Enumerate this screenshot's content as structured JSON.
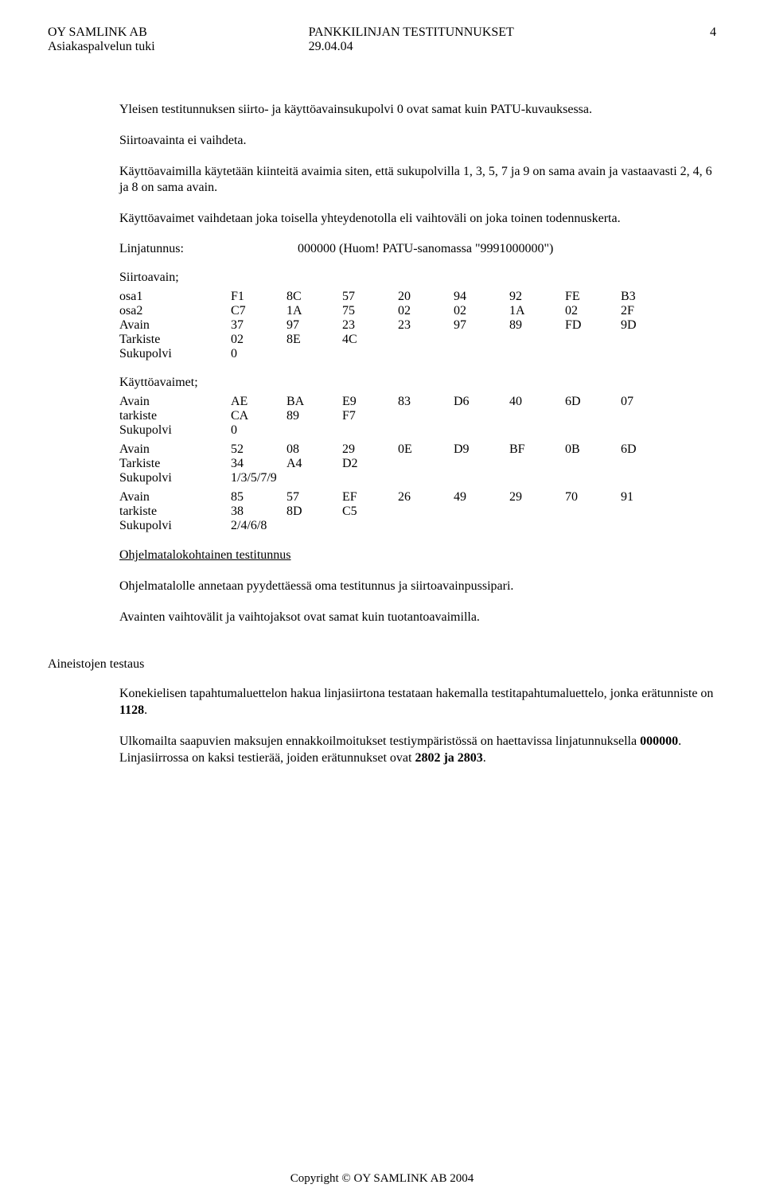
{
  "header": {
    "company": "OY  SAMLINK AB",
    "subline": "Asiakaspalvelun tuki",
    "title": "PANKKILINJAN TESTITUNNUKSET",
    "date": "29.04.04",
    "page_number": "4"
  },
  "paragraphs": {
    "p1": "Yleisen testitunnuksen siirto- ja käyttöavainsukupolvi 0 ovat samat kuin PATU-kuvauksessa.",
    "p2": "Siirtoavainta ei vaihdeta.",
    "p3": "Käyttöavaimilla käytetään kiinteitä avaimia siten, että sukupolvilla 1, 3, 5, 7 ja 9 on sama avain ja vastaavasti 2, 4, 6 ja 8 on sama avain.",
    "p4": "Käyttöavaimet vaihdetaan joka toisella yhteydenotolla eli vaihtoväli on joka toinen todennuskerta.",
    "linjatunnus_label": "Linjatunnus:",
    "linjatunnus_value": "000000 (Huom! PATU-sanomassa \"9991000000\")",
    "siirtoavain_header": "Siirtoavain;",
    "kayttoavaimet_header": "Käyttöavaimet;",
    "ohjelmatalo_title": "Ohjelmatalokohtainen testitunnus",
    "p5": "Ohjelmatalolle annetaan pyydettäessä oma testitunnus ja siirtoavainpussipari.",
    "p6": "Avainten vaihtovälit ja vaihtojaksot ovat samat kuin tuotantoavaimilla.",
    "aineistojen_title": "Aineistojen testaus",
    "p7a": "Konekielisen tapahtumaluettelon hakua linjasiirtona testataan hakemalla testitapahtumaluettelo, jonka erätunniste on ",
    "p7b": "1128",
    "p7c": ".",
    "p8a": "Ulkomailta saapuvien maksujen ennakkoilmoitukset testiympäristössä on haettavissa linjatunnuksella ",
    "p8b": "000000",
    "p8c": ". Linjasiirrossa on kaksi testierää, joiden erätunnukset ovat ",
    "p8d": "2802 ja 2803",
    "p8e": "."
  },
  "tables": {
    "siirtoavain": {
      "rows": [
        {
          "label": "osa1",
          "cells": [
            "F1",
            "8C",
            "57",
            "20",
            "94",
            "92",
            "FE",
            "B3"
          ]
        },
        {
          "label": "osa2",
          "cells": [
            "C7",
            "1A",
            "75",
            "02",
            "02",
            "1A",
            "02",
            "2F"
          ]
        },
        {
          "label": "Avain",
          "cells": [
            "37",
            "97",
            "23",
            "23",
            "97",
            "89",
            "FD",
            "9D"
          ]
        },
        {
          "label": "Tarkiste",
          "cells": [
            "02",
            "8E",
            "4C",
            "",
            "",
            "",
            "",
            ""
          ]
        },
        {
          "label": "Sukupolvi",
          "cells": [
            "0",
            "",
            "",
            "",
            "",
            "",
            "",
            ""
          ]
        }
      ]
    },
    "kayttoavaimet1": {
      "rows": [
        {
          "label": "Avain",
          "cells": [
            "AE",
            "BA",
            "E9",
            "83",
            "D6",
            "40",
            "6D",
            "07"
          ]
        },
        {
          "label": "tarkiste",
          "cells": [
            "CA",
            "89",
            "F7",
            "",
            "",
            "",
            "",
            ""
          ]
        },
        {
          "label": "Sukupolvi",
          "cells": [
            "0",
            "",
            "",
            "",
            "",
            "",
            "",
            ""
          ]
        }
      ]
    },
    "kayttoavaimet2": {
      "rows": [
        {
          "label": "Avain",
          "cells": [
            "52",
            "08",
            "29",
            "0E",
            "D9",
            "BF",
            "0B",
            "6D"
          ]
        },
        {
          "label": "Tarkiste",
          "cells": [
            "34",
            "A4",
            "D2",
            "",
            "",
            "",
            "",
            ""
          ]
        },
        {
          "label": "Sukupolvi",
          "cells": [
            "1/3/5/7/9",
            "",
            "",
            "",
            "",
            "",
            "",
            ""
          ]
        }
      ]
    },
    "kayttoavaimet3": {
      "rows": [
        {
          "label": "Avain",
          "cells": [
            "85",
            "57",
            "EF",
            "26",
            "49",
            "29",
            "70",
            "91"
          ]
        },
        {
          "label": "tarkiste",
          "cells": [
            "38",
            "8D",
            "C5",
            "",
            "",
            "",
            "",
            ""
          ]
        },
        {
          "label": "Sukupolvi",
          "cells": [
            "2/4/6/8",
            "",
            "",
            "",
            "",
            "",
            "",
            ""
          ]
        }
      ]
    }
  },
  "footer": "Copyright © OY SAMLINK AB  2004"
}
